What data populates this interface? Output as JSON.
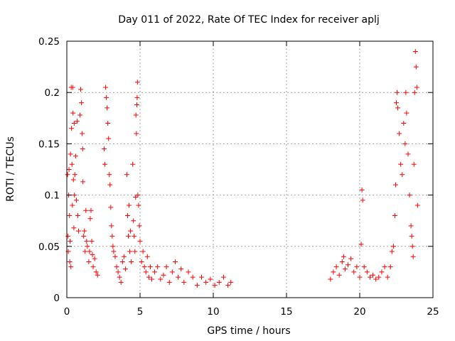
{
  "chart_data": {
    "type": "scatter",
    "title": "Day 011 of 2022, Rate Of TEC Index for receiver aplj",
    "xlabel": "GPS time / hours",
    "ylabel": "ROTI / TECUs",
    "xlim": [
      0,
      25
    ],
    "ylim": [
      0,
      0.25
    ],
    "xticks": [
      0,
      5,
      10,
      15,
      20,
      25
    ],
    "xtick_labels": [
      "0",
      "5",
      "10",
      "15",
      "20",
      "25"
    ],
    "yticks": [
      0,
      0.05,
      0.1,
      0.15,
      0.2,
      0.25
    ],
    "ytick_labels": [
      "0",
      "0.05",
      "0.1",
      "0.15",
      "0.2",
      "0.25"
    ],
    "grid": true,
    "marker": "+",
    "color": "#ff0000",
    "series": [
      {
        "name": "ROTI",
        "points": [
          [
            0.05,
            0.12
          ],
          [
            0.08,
            0.06
          ],
          [
            0.1,
            0.045
          ],
          [
            0.12,
            0.1
          ],
          [
            0.15,
            0.125
          ],
          [
            0.18,
            0.08
          ],
          [
            0.2,
            0.035
          ],
          [
            0.22,
            0.055
          ],
          [
            0.25,
            0.14
          ],
          [
            0.28,
            0.03
          ],
          [
            0.3,
            0.205
          ],
          [
            0.32,
            0.165
          ],
          [
            0.35,
            0.13
          ],
          [
            0.38,
            0.09
          ],
          [
            0.4,
            0.205
          ],
          [
            0.42,
            0.18
          ],
          [
            0.45,
            0.115
          ],
          [
            0.48,
            0.068
          ],
          [
            0.5,
            0.17
          ],
          [
            0.52,
            0.1
          ],
          [
            0.55,
            0.12
          ],
          [
            0.6,
            0.138
          ],
          [
            0.65,
            0.095
          ],
          [
            0.7,
            0.172
          ],
          [
            0.75,
            0.08
          ],
          [
            0.8,
            0.065
          ],
          [
            0.9,
            0.178
          ],
          [
            0.95,
            0.203
          ],
          [
            1.0,
            0.19
          ],
          [
            1.05,
            0.16
          ],
          [
            1.08,
            0.145
          ],
          [
            1.1,
            0.113
          ],
          [
            1.15,
            0.06
          ],
          [
            1.2,
            0.065
          ],
          [
            1.25,
            0.045
          ],
          [
            1.3,
            0.085
          ],
          [
            1.35,
            0.055
          ],
          [
            1.4,
            0.05
          ],
          [
            1.5,
            0.035
          ],
          [
            1.55,
            0.045
          ],
          [
            1.6,
            0.077
          ],
          [
            1.65,
            0.085
          ],
          [
            1.7,
            0.055
          ],
          [
            1.75,
            0.042
          ],
          [
            1.8,
            0.03
          ],
          [
            1.9,
            0.038
          ],
          [
            2.0,
            0.025
          ],
          [
            2.1,
            0.022
          ],
          [
            2.55,
            0.145
          ],
          [
            2.6,
            0.13
          ],
          [
            2.65,
            0.205
          ],
          [
            2.7,
            0.195
          ],
          [
            2.75,
            0.185
          ],
          [
            2.8,
            0.17
          ],
          [
            2.85,
            0.155
          ],
          [
            2.9,
            0.12
          ],
          [
            2.95,
            0.11
          ],
          [
            3.0,
            0.088
          ],
          [
            3.05,
            0.07
          ],
          [
            3.1,
            0.06
          ],
          [
            3.15,
            0.05
          ],
          [
            3.2,
            0.045
          ],
          [
            3.3,
            0.04
          ],
          [
            3.4,
            0.03
          ],
          [
            3.5,
            0.025
          ],
          [
            3.6,
            0.02
          ],
          [
            3.7,
            0.015
          ],
          [
            3.8,
            0.035
          ],
          [
            3.9,
            0.04
          ],
          [
            4.0,
            0.028
          ],
          [
            4.1,
            0.12
          ],
          [
            4.15,
            0.08
          ],
          [
            4.2,
            0.06
          ],
          [
            4.25,
            0.09
          ],
          [
            4.3,
            0.045
          ],
          [
            4.35,
            0.065
          ],
          [
            4.4,
            0.035
          ],
          [
            4.5,
            0.13
          ],
          [
            4.55,
            0.075
          ],
          [
            4.6,
            0.06
          ],
          [
            4.65,
            0.045
          ],
          [
            4.7,
            0.098
          ],
          [
            4.72,
            0.178
          ],
          [
            4.75,
            0.16
          ],
          [
            4.78,
            0.188
          ],
          [
            4.8,
            0.195
          ],
          [
            4.82,
            0.21
          ],
          [
            4.85,
            0.1
          ],
          [
            4.9,
            0.09
          ],
          [
            4.95,
            0.07
          ],
          [
            5.0,
            0.055
          ],
          [
            5.1,
            0.035
          ],
          [
            5.2,
            0.045
          ],
          [
            5.3,
            0.03
          ],
          [
            5.4,
            0.025
          ],
          [
            5.5,
            0.04
          ],
          [
            5.6,
            0.02
          ],
          [
            5.7,
            0.03
          ],
          [
            5.8,
            0.018
          ],
          [
            6.0,
            0.025
          ],
          [
            6.2,
            0.03
          ],
          [
            6.4,
            0.018
          ],
          [
            6.6,
            0.022
          ],
          [
            6.8,
            0.03
          ],
          [
            7.0,
            0.015
          ],
          [
            7.2,
            0.025
          ],
          [
            7.4,
            0.035
          ],
          [
            7.6,
            0.02
          ],
          [
            7.8,
            0.028
          ],
          [
            8.0,
            0.015
          ],
          [
            8.3,
            0.025
          ],
          [
            8.6,
            0.02
          ],
          [
            8.9,
            0.012
          ],
          [
            9.2,
            0.02
          ],
          [
            9.5,
            0.015
          ],
          [
            9.8,
            0.018
          ],
          [
            10.1,
            0.012
          ],
          [
            10.4,
            0.015
          ],
          [
            10.7,
            0.02
          ],
          [
            11.0,
            0.012
          ],
          [
            11.2,
            0.015
          ],
          [
            18.0,
            0.018
          ],
          [
            18.2,
            0.025
          ],
          [
            18.4,
            0.03
          ],
          [
            18.6,
            0.022
          ],
          [
            18.8,
            0.035
          ],
          [
            18.9,
            0.04
          ],
          [
            19.0,
            0.028
          ],
          [
            19.2,
            0.032
          ],
          [
            19.4,
            0.038
          ],
          [
            19.6,
            0.025
          ],
          [
            19.8,
            0.03
          ],
          [
            20.0,
            0.02
          ],
          [
            20.1,
            0.052
          ],
          [
            20.15,
            0.105
          ],
          [
            20.2,
            0.095
          ],
          [
            20.3,
            0.03
          ],
          [
            20.5,
            0.025
          ],
          [
            20.7,
            0.02
          ],
          [
            20.9,
            0.022
          ],
          [
            21.1,
            0.018
          ],
          [
            21.3,
            0.02
          ],
          [
            21.5,
            0.025
          ],
          [
            21.7,
            0.03
          ],
          [
            21.9,
            0.02
          ],
          [
            22.1,
            0.03
          ],
          [
            22.2,
            0.045
          ],
          [
            22.3,
            0.05
          ],
          [
            22.4,
            0.08
          ],
          [
            22.45,
            0.11
          ],
          [
            22.5,
            0.19
          ],
          [
            22.55,
            0.2
          ],
          [
            22.6,
            0.185
          ],
          [
            22.7,
            0.16
          ],
          [
            22.8,
            0.13
          ],
          [
            22.9,
            0.12
          ],
          [
            23.0,
            0.17
          ],
          [
            23.1,
            0.15
          ],
          [
            23.15,
            0.2
          ],
          [
            23.2,
            0.18
          ],
          [
            23.3,
            0.14
          ],
          [
            23.4,
            0.1
          ],
          [
            23.5,
            0.07
          ],
          [
            23.55,
            0.06
          ],
          [
            23.6,
            0.05
          ],
          [
            23.65,
            0.04
          ],
          [
            23.7,
            0.13
          ],
          [
            23.75,
            0.2
          ],
          [
            23.8,
            0.24
          ],
          [
            23.85,
            0.225
          ],
          [
            23.9,
            0.205
          ],
          [
            23.95,
            0.09
          ]
        ]
      }
    ]
  }
}
